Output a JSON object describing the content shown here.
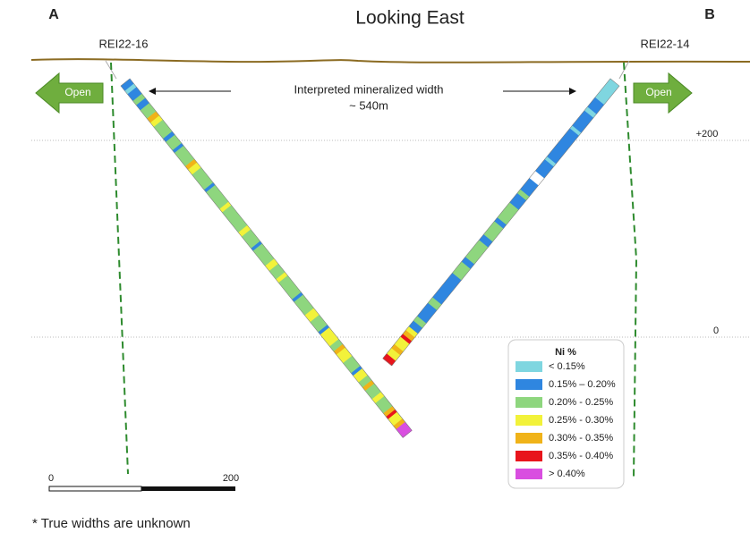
{
  "header": {
    "title": "Looking East",
    "left_label": "A",
    "right_label": "B"
  },
  "holes": [
    {
      "name": "REI22-16"
    },
    {
      "name": "REI22-14"
    }
  ],
  "open_labels": [
    "Open",
    "Open"
  ],
  "annotation": {
    "line1": "Interpreted mineralized width",
    "line2": "~ 540m"
  },
  "elevations": [
    "+200",
    "0"
  ],
  "legend": {
    "title": "Ni %",
    "items": [
      {
        "label": "< 0.15%",
        "color": "#7fd6e0"
      },
      {
        "label": "0.15% – 0.20%",
        "color": "#2f86e0"
      },
      {
        "label": "0.20% - 0.25%",
        "color": "#8ed67e"
      },
      {
        "label": "0.25% - 0.30%",
        "color": "#f2f23a"
      },
      {
        "label": "0.30% - 0.35%",
        "color": "#f0b319"
      },
      {
        "label": "0.35% - 0.40%",
        "color": "#e8141c"
      },
      {
        "label": "> 0.40%",
        "color": "#d94ee0"
      }
    ]
  },
  "scale": {
    "start": "0",
    "end": "200"
  },
  "footnote": "* True widths are unknown"
}
